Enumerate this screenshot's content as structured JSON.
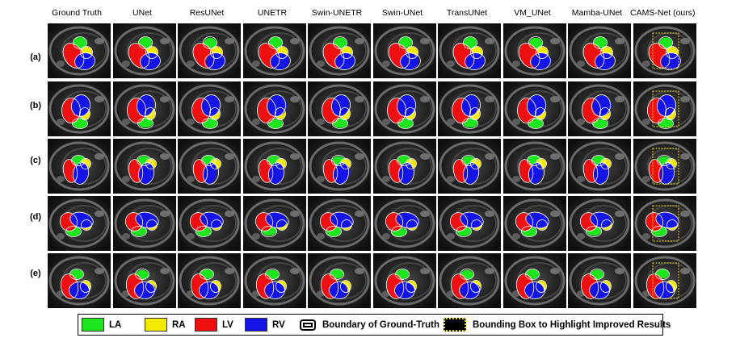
{
  "columns": [
    "Ground Truth",
    "UNet",
    "ResUNet",
    "UNETR",
    "Swin-UNETR",
    "Swin-UNet",
    "TransUNet",
    "VM_UNet",
    "Mamba-UNet",
    "CAMS-Net (ours)"
  ],
  "rows": [
    "(a)",
    "(b)",
    "(c)",
    "(d)",
    "(e)"
  ],
  "colors": {
    "LA": "#1ee61e",
    "RA": "#f4ea00",
    "LV": "#ee1010",
    "RV": "#1414e6",
    "bbox": "#e8d51a"
  },
  "legend": {
    "la": "LA",
    "ra": "RA",
    "lv": "LV",
    "rv": "RV",
    "boundary": "Boundary of  Ground-Truth",
    "bbox": "Bounding Box to Highlight Improved Results"
  },
  "structure_order": [
    "LA",
    "RA",
    "LV",
    "RV"
  ]
}
